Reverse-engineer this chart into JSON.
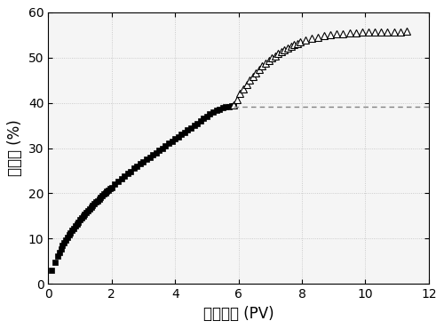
{
  "title": "",
  "xlabel": "注入体积 (PV)",
  "ylabel": "采收率 (%)",
  "xlim": [
    0,
    12
  ],
  "ylim": [
    0,
    60
  ],
  "xticks": [
    0,
    2,
    4,
    6,
    8,
    10,
    12
  ],
  "yticks": [
    0,
    10,
    20,
    30,
    40,
    50,
    60
  ],
  "dashed_line_y": 39.2,
  "dashed_line_x_start": 5.85,
  "series1_x": [
    0.1,
    0.2,
    0.3,
    0.35,
    0.4,
    0.45,
    0.5,
    0.55,
    0.6,
    0.65,
    0.7,
    0.75,
    0.8,
    0.85,
    0.9,
    0.95,
    1.0,
    1.05,
    1.1,
    1.15,
    1.2,
    1.25,
    1.3,
    1.35,
    1.4,
    1.45,
    1.5,
    1.55,
    1.6,
    1.65,
    1.7,
    1.75,
    1.8,
    1.85,
    1.9,
    1.95,
    2.0,
    2.1,
    2.2,
    2.3,
    2.4,
    2.5,
    2.6,
    2.7,
    2.8,
    2.9,
    3.0,
    3.1,
    3.2,
    3.3,
    3.4,
    3.5,
    3.6,
    3.7,
    3.8,
    3.9,
    4.0,
    4.1,
    4.2,
    4.3,
    4.4,
    4.5,
    4.6,
    4.7,
    4.8,
    4.9,
    5.0,
    5.1,
    5.2,
    5.3,
    5.4,
    5.5,
    5.6,
    5.7,
    5.8,
    5.85
  ],
  "series1_y": [
    3.0,
    4.8,
    6.2,
    7.0,
    7.7,
    8.4,
    9.0,
    9.6,
    10.2,
    10.8,
    11.3,
    11.8,
    12.3,
    12.8,
    13.2,
    13.7,
    14.1,
    14.5,
    14.9,
    15.3,
    15.7,
    16.1,
    16.5,
    16.9,
    17.3,
    17.7,
    18.1,
    18.4,
    18.8,
    19.1,
    19.5,
    19.8,
    20.1,
    20.4,
    20.7,
    21.0,
    21.3,
    22.0,
    22.6,
    23.2,
    23.8,
    24.4,
    24.9,
    25.5,
    26.0,
    26.5,
    27.0,
    27.5,
    28.0,
    28.5,
    29.0,
    29.5,
    30.0,
    30.5,
    31.0,
    31.5,
    32.0,
    32.5,
    33.0,
    33.5,
    34.0,
    34.5,
    35.0,
    35.5,
    36.0,
    36.5,
    37.0,
    37.5,
    38.0,
    38.3,
    38.6,
    38.9,
    39.1,
    39.2,
    39.25,
    39.3
  ],
  "series2_x": [
    5.85,
    5.95,
    6.05,
    6.15,
    6.25,
    6.35,
    6.45,
    6.55,
    6.65,
    6.75,
    6.85,
    6.95,
    7.05,
    7.15,
    7.25,
    7.35,
    7.45,
    7.55,
    7.65,
    7.75,
    7.85,
    7.95,
    8.1,
    8.3,
    8.5,
    8.7,
    8.9,
    9.1,
    9.3,
    9.5,
    9.7,
    9.9,
    10.1,
    10.3,
    10.5,
    10.7,
    10.9,
    11.1,
    11.3
  ],
  "series2_y": [
    39.5,
    40.8,
    42.0,
    43.1,
    44.1,
    45.1,
    45.9,
    46.7,
    47.4,
    48.1,
    48.7,
    49.3,
    49.9,
    50.4,
    50.9,
    51.3,
    51.8,
    52.1,
    52.5,
    52.8,
    53.1,
    53.4,
    53.8,
    54.2,
    54.5,
    54.8,
    55.0,
    55.2,
    55.35,
    55.45,
    55.5,
    55.55,
    55.6,
    55.65,
    55.68,
    55.7,
    55.72,
    55.74,
    55.76
  ],
  "bg_color": "#ffffff",
  "plot_bg": "#f5f5f5"
}
